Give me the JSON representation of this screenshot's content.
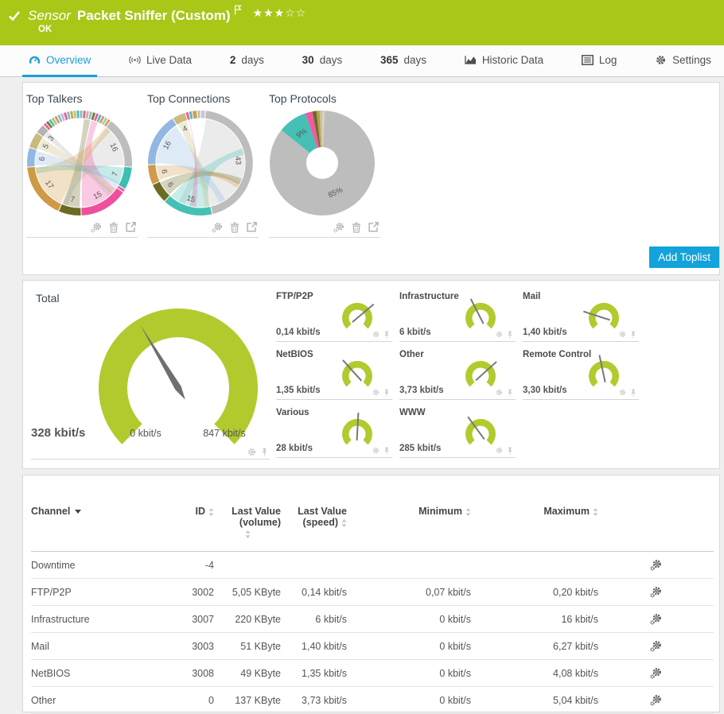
{
  "colors": {
    "header_green": "#a9c717",
    "gauge_green": "#b2ca2e",
    "accent_blue": "#1b9ed9",
    "button_blue": "#13a3da"
  },
  "header": {
    "kind": "Sensor",
    "title": "Packet Sniffer (Custom)",
    "status": "OK",
    "rating_filled": 3,
    "rating_total": 5
  },
  "tabs": [
    {
      "label": "Overview",
      "icon": "speed",
      "active": true
    },
    {
      "label": "Live Data",
      "icon": "broadcast",
      "active": false
    },
    {
      "prefix": "2",
      "label": "days",
      "active": false
    },
    {
      "prefix": "30",
      "label": "days",
      "active": false
    },
    {
      "prefix": "365",
      "label": "days",
      "active": false
    },
    {
      "label": "Historic Data",
      "icon": "histchart",
      "active": false
    },
    {
      "label": "Log",
      "icon": "log",
      "active": false
    },
    {
      "label": "Settings",
      "icon": "gear",
      "active": false
    }
  ],
  "toplists": {
    "add_button": "Add Toplist"
  },
  "chart_data": [
    {
      "type": "chord",
      "title": "Top Talkers",
      "segments": [
        {
          "value": 1,
          "color": "#73c8c0"
        },
        {
          "value": 1,
          "color": "#ef5ba1"
        },
        {
          "value": 1,
          "color": "#cbbb7c"
        },
        {
          "value": 1,
          "color": "#92b8e2"
        },
        {
          "value": 1,
          "color": "#7b7530"
        },
        {
          "value": 1,
          "color": "#ef5ba1"
        },
        {
          "value": 1,
          "color": "#49bfb6"
        },
        {
          "value": 1,
          "color": "#c5a253"
        },
        {
          "value": 1,
          "color": "#bdbdbd"
        },
        {
          "value": 1,
          "color": "#d0a050"
        },
        {
          "value": 16,
          "label": "16",
          "color": "#bdbdbd",
          "to": 200
        },
        {
          "value": 7,
          "label": "7",
          "color": "#3fbdb2",
          "to": 260
        },
        {
          "value": 1,
          "color": "#ef5ba1"
        },
        {
          "value": 15,
          "label": "15",
          "color": "#ee4f9e",
          "to": 20
        },
        {
          "value": 7,
          "label": "7",
          "color": "#6d6a24",
          "to": 10
        },
        {
          "value": 17,
          "label": "17",
          "color": "#cf9a45",
          "to": 40
        },
        {
          "value": 6,
          "label": "6",
          "color": "#92b8e2",
          "to": 120
        },
        {
          "value": 5,
          "label": "5",
          "color": "#c9b97a",
          "to": 130
        },
        {
          "value": 3,
          "label": "3",
          "color": "#b3b3b3",
          "to": 135
        },
        {
          "value": 1,
          "color": "#ef5ba1"
        },
        {
          "value": 1,
          "color": "#7b7530"
        },
        {
          "value": 1,
          "color": "#49bfb6"
        },
        {
          "value": 1,
          "color": "#cbbb7c"
        },
        {
          "value": 1,
          "color": "#d0a050"
        },
        {
          "value": 1,
          "color": "#92b8e2"
        },
        {
          "value": 1,
          "color": "#bdbdbd"
        },
        {
          "value": 1,
          "color": "#ef5ba1"
        },
        {
          "value": 1,
          "color": "#73c8c0"
        },
        {
          "value": 1,
          "color": "#c5a253"
        },
        {
          "value": 1,
          "color": "#cbbb7c"
        },
        {
          "value": 1,
          "color": "#49bfb6"
        }
      ]
    },
    {
      "type": "chord",
      "title": "Top Connections",
      "segments": [
        {
          "value": 1.5,
          "color": "#c9c9c9"
        },
        {
          "value": 43,
          "label": "43",
          "color": "#bdbdbd",
          "to": 205
        },
        {
          "value": 15,
          "label": "15",
          "color": "#45c0b5",
          "to": 75
        },
        {
          "value": 6,
          "label": "6",
          "color": "#6d6a24",
          "to": 115
        },
        {
          "value": 6,
          "label": "6",
          "color": "#d09a4a",
          "to": 120
        },
        {
          "value": 16,
          "label": "16",
          "color": "#92b8e2",
          "to": 150
        },
        {
          "value": 4,
          "label": "4",
          "color": "#cbbb7c",
          "to": 170
        },
        {
          "value": 1,
          "color": "#ef5ba1",
          "to": 190
        },
        {
          "value": 1,
          "color": "#49bfb6"
        },
        {
          "value": 1.5,
          "color": "#d0a050"
        },
        {
          "value": 1,
          "color": "#bdbdbd"
        }
      ]
    },
    {
      "type": "pie",
      "title": "Top Protocols",
      "slices": [
        {
          "value": 0.8,
          "color": "#d8d2c4"
        },
        {
          "value": 85,
          "label": "85%",
          "color": "#bdbdbd"
        },
        {
          "value": 9,
          "label": "9%",
          "color": "#45c0b5"
        },
        {
          "value": 2.2,
          "color": "#ef5ba1"
        },
        {
          "value": 1.2,
          "color": "#6d6a24"
        },
        {
          "value": 1,
          "color": "#b5a14b"
        },
        {
          "value": 0.8,
          "color": "#cbc49a"
        }
      ]
    },
    {
      "type": "gauge",
      "name": "Total",
      "value": "328 kbit/s",
      "min": "0 kbit/s",
      "max": "847 kbit/s",
      "needle_deg": -31
    },
    {
      "type": "gauge",
      "name": "FTP/P2P",
      "value": "0,14 kbit/s",
      "needle_deg": 50
    },
    {
      "type": "gauge",
      "name": "Infrastructure",
      "value": "6 kbit/s",
      "needle_deg": -27
    },
    {
      "type": "gauge",
      "name": "Mail",
      "value": "1,40 kbit/s",
      "needle_deg": -72
    },
    {
      "type": "gauge",
      "name": "NetBIOS",
      "value": "1,35 kbit/s",
      "needle_deg": -42
    },
    {
      "type": "gauge",
      "name": "Other",
      "value": "3,73 kbit/s",
      "needle_deg": 48
    },
    {
      "type": "gauge",
      "name": "Remote Control",
      "value": "3,30 kbit/s",
      "needle_deg": -12
    },
    {
      "type": "gauge",
      "name": "Various",
      "value": "28 kbit/s",
      "needle_deg": 3
    },
    {
      "type": "gauge",
      "name": "WWW",
      "value": "285 kbit/s",
      "needle_deg": -36
    }
  ],
  "table": {
    "columns": [
      {
        "lines": [
          "Channel"
        ],
        "align": "left",
        "sorted": "desc"
      },
      {
        "lines": [
          "ID"
        ],
        "align": "right",
        "sortable": true
      },
      {
        "lines": [
          "Last Value",
          "(volume)"
        ],
        "align": "right",
        "sortable": true,
        "sort_below": true
      },
      {
        "lines": [
          "Last Value",
          "(speed)"
        ],
        "align": "right",
        "sortable": true
      },
      {
        "lines": [
          "Minimum"
        ],
        "align": "right",
        "sortable": true
      },
      {
        "lines": [
          "Maximum"
        ],
        "align": "right",
        "sortable": true
      },
      {
        "lines": [],
        "align": "center"
      }
    ],
    "rows": [
      {
        "channel": "Downtime",
        "id": "-4",
        "volume": "",
        "speed": "",
        "min": "",
        "max": ""
      },
      {
        "channel": "FTP/P2P",
        "id": "3002",
        "volume": "5,05 KByte",
        "speed": "0,14 kbit/s",
        "min": "0,07 kbit/s",
        "max": "0,20 kbit/s"
      },
      {
        "channel": "Infrastructure",
        "id": "3007",
        "volume": "220 KByte",
        "speed": "6 kbit/s",
        "min": "0 kbit/s",
        "max": "16 kbit/s"
      },
      {
        "channel": "Mail",
        "id": "3003",
        "volume": "51 KByte",
        "speed": "1,40 kbit/s",
        "min": "0 kbit/s",
        "max": "6,27 kbit/s"
      },
      {
        "channel": "NetBIOS",
        "id": "3008",
        "volume": "49 KByte",
        "speed": "1,35 kbit/s",
        "min": "0 kbit/s",
        "max": "4,08 kbit/s"
      },
      {
        "channel": "Other",
        "id": "0",
        "volume": "137 KByte",
        "speed": "3,73 kbit/s",
        "min": "0 kbit/s",
        "max": "5,04 kbit/s"
      }
    ]
  }
}
